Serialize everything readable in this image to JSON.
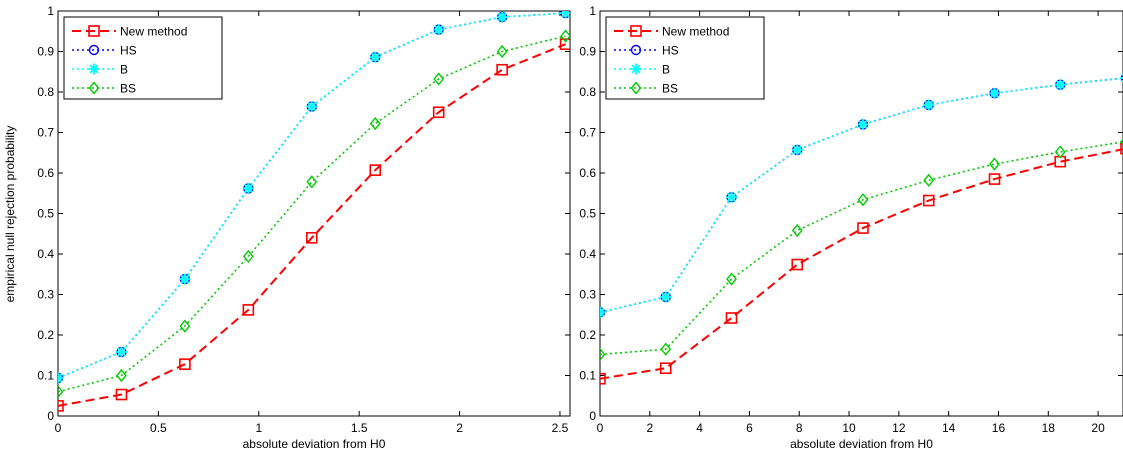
{
  "figure": {
    "shared_ylabel": "empirical null rejection probability",
    "legend_labels": [
      "New method",
      "HS",
      "B",
      "BS"
    ]
  },
  "chart_data": [
    {
      "type": "line",
      "xlabel": "absolute deviation from H0",
      "ylabel": "empirical null rejection probability",
      "xlim": [
        0,
        2.55
      ],
      "ylim": [
        0,
        1
      ],
      "xticks": [
        "0",
        "0.5",
        "1",
        "1.5",
        "2",
        "2.5"
      ],
      "xtick_values": [
        0,
        0.5,
        1,
        1.5,
        2,
        2.5
      ],
      "yticks": [
        "0",
        "0.1",
        "0.2",
        "0.3",
        "0.4",
        "0.5",
        "0.6",
        "0.7",
        "0.8",
        "0.9",
        "1"
      ],
      "ytick_values": [
        0,
        0.1,
        0.2,
        0.3,
        0.4,
        0.5,
        0.6,
        0.7,
        0.8,
        0.9,
        1
      ],
      "grid": false,
      "legend_position": "top-left",
      "x": [
        0,
        0.316,
        0.632,
        0.948,
        1.264,
        1.58,
        1.896,
        2.212,
        2.528
      ],
      "series": [
        {
          "name": "New method",
          "color": "#ff0000",
          "dash": "dashed",
          "marker": "square",
          "values": [
            0.025,
            0.053,
            0.128,
            0.262,
            0.44,
            0.607,
            0.75,
            0.855,
            0.918
          ]
        },
        {
          "name": "HS",
          "color": "#0000ff",
          "dash": "dotted",
          "marker": "circle",
          "values": [
            0.094,
            0.158,
            0.338,
            0.562,
            0.764,
            0.886,
            0.954,
            0.985,
            0.995
          ]
        },
        {
          "name": "B",
          "color": "#00ffff",
          "dash": "dotted",
          "marker": "star",
          "values": [
            0.094,
            0.158,
            0.338,
            0.562,
            0.764,
            0.886,
            0.954,
            0.985,
            0.995
          ]
        },
        {
          "name": "BS",
          "color": "#00cc00",
          "dash": "dotted",
          "marker": "diamond",
          "values": [
            0.06,
            0.1,
            0.222,
            0.394,
            0.578,
            0.722,
            0.832,
            0.9,
            0.938
          ]
        }
      ]
    },
    {
      "type": "line",
      "xlabel": "absolute deviation from H0",
      "ylabel": "",
      "xlim": [
        0,
        21
      ],
      "ylim": [
        0,
        1
      ],
      "xticks": [
        "0",
        "2",
        "4",
        "6",
        "8",
        "10",
        "12",
        "14",
        "16",
        "18",
        "20"
      ],
      "xtick_values": [
        0,
        2,
        4,
        6,
        8,
        10,
        12,
        14,
        16,
        18,
        20
      ],
      "yticks": [
        "0",
        "0.1",
        "0.2",
        "0.3",
        "0.4",
        "0.5",
        "0.6",
        "0.7",
        "0.8",
        "0.9",
        "1"
      ],
      "ytick_values": [
        0,
        0.1,
        0.2,
        0.3,
        0.4,
        0.5,
        0.6,
        0.7,
        0.8,
        0.9,
        1
      ],
      "grid": false,
      "legend_position": "top-left",
      "x": [
        0,
        2.64,
        5.28,
        7.92,
        10.56,
        13.2,
        15.84,
        18.48,
        21.12
      ],
      "series": [
        {
          "name": "New method",
          "color": "#ff0000",
          "dash": "dashed",
          "marker": "square",
          "values": [
            0.092,
            0.118,
            0.242,
            0.374,
            0.464,
            0.532,
            0.585,
            0.628,
            0.66
          ]
        },
        {
          "name": "HS",
          "color": "#0000ff",
          "dash": "dotted",
          "marker": "circle",
          "values": [
            0.256,
            0.294,
            0.54,
            0.657,
            0.72,
            0.768,
            0.797,
            0.818,
            0.835
          ]
        },
        {
          "name": "B",
          "color": "#00ffff",
          "dash": "dotted",
          "marker": "star",
          "values": [
            0.256,
            0.294,
            0.54,
            0.657,
            0.72,
            0.768,
            0.797,
            0.818,
            0.835
          ]
        },
        {
          "name": "BS",
          "color": "#00cc00",
          "dash": "dotted",
          "marker": "diamond",
          "values": [
            0.152,
            0.165,
            0.338,
            0.458,
            0.534,
            0.582,
            0.622,
            0.652,
            0.678
          ]
        }
      ]
    }
  ]
}
